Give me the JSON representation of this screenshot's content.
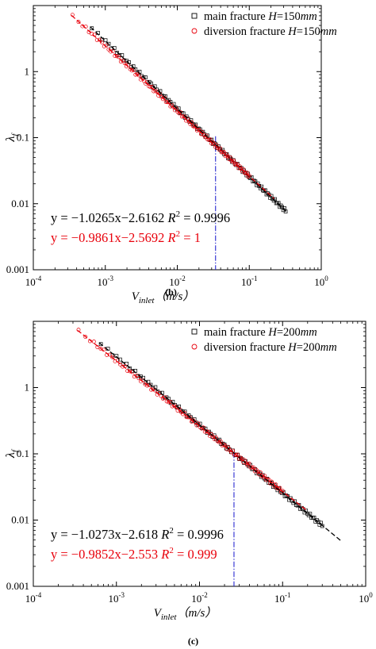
{
  "chart_data": [
    {
      "type": "scatter",
      "panel_label": "(b)",
      "xscale": "log",
      "yscale": "log",
      "xlim": [
        0.0001,
        1
      ],
      "ylim": [
        0.001,
        10
      ],
      "x_ticks": [
        {
          "base": "10",
          "exp": "-4"
        },
        {
          "base": "10",
          "exp": "-3"
        },
        {
          "base": "10",
          "exp": "-2"
        },
        {
          "base": "10",
          "exp": "-1"
        },
        {
          "base": "10",
          "exp": "0"
        }
      ],
      "y_ticks": [
        "0.001",
        "0.01",
        "0.1",
        "1"
      ],
      "xlabel": {
        "main": "V",
        "sub": "inlet",
        "unit": "（m/s）"
      },
      "ylabel": {
        "main": "λ",
        "sub": "f"
      },
      "legend": {
        "placement": "top-right",
        "items": [
          {
            "text": "main fracture ",
            "var": "H",
            "rest": "=150",
            "unit": "mm",
            "marker": "square",
            "color": "#000000"
          },
          {
            "text": "diversion fracture ",
            "var": "H",
            "rest": "=150",
            "unit": "mm",
            "marker": "circle",
            "color": "#e8000b"
          }
        ]
      },
      "annotations": [
        {
          "pre": "y = −1.0265x−2.6162 ",
          "var": "R",
          "sup": "2",
          "post": " = 0.9996",
          "color": "#000000"
        },
        {
          "pre": "y = −0.9861x−2.5692 ",
          "var": "R",
          "sup": "2",
          "post": " = 1",
          "color": "#e8000b"
        }
      ],
      "vline_x": 0.034,
      "series": [
        {
          "name": "main fracture H=150mm",
          "color": "#000000",
          "marker": "square",
          "x_range": [
            0.00065,
            0.32
          ],
          "n": 120,
          "slope": -1.0265,
          "intercept": -2.6162
        },
        {
          "name": "diversion fracture H=150mm",
          "color": "#e8000b",
          "marker": "circle",
          "x_range": [
            0.00035,
            0.1
          ],
          "n": 110,
          "slope": -0.9861,
          "intercept": -2.5692
        }
      ],
      "fit_lines": [
        {
          "color": "#000000",
          "style": "dashed",
          "slope": -1.0265,
          "intercept": -2.6162,
          "x_range": [
            0.00062,
            0.34
          ]
        },
        {
          "color": "#e8000b",
          "style": "dashed",
          "slope": -0.9861,
          "intercept": -2.5692,
          "x_range": [
            0.00034,
            0.22
          ]
        }
      ]
    },
    {
      "type": "scatter",
      "panel_label": "(c)",
      "xscale": "log",
      "yscale": "log",
      "xlim": [
        0.0001,
        1
      ],
      "ylim": [
        0.001,
        10
      ],
      "x_ticks": [
        {
          "base": "10",
          "exp": "-4"
        },
        {
          "base": "10",
          "exp": "-3"
        },
        {
          "base": "10",
          "exp": "-2"
        },
        {
          "base": "10",
          "exp": "-1"
        },
        {
          "base": "10",
          "exp": "0"
        }
      ],
      "y_ticks": [
        "0.001",
        "0.01",
        "0.1",
        "1"
      ],
      "xlabel": {
        "main": "V",
        "sub": "inlet",
        "unit": "（m/s）"
      },
      "ylabel": {
        "main": "λ",
        "sub": "f"
      },
      "legend": {
        "placement": "top-right",
        "items": [
          {
            "text": "main fracture ",
            "var": "H",
            "rest": "=200",
            "unit": "mm",
            "marker": "square",
            "color": "#000000"
          },
          {
            "text": "diversion fracture ",
            "var": "H",
            "rest": "=200",
            "unit": "mm",
            "marker": "circle",
            "color": "#e8000b"
          }
        ]
      },
      "annotations": [
        {
          "pre": "y = −1.0273x−2.618 ",
          "var": "R",
          "sup": "2",
          "post": " = 0.9996",
          "color": "#000000"
        },
        {
          "pre": "y = −0.9852x−2.553 ",
          "var": "R",
          "sup": "2",
          "post": " = 0.999",
          "color": "#e8000b"
        }
      ],
      "vline_x": 0.026,
      "series": [
        {
          "name": "main fracture H=200mm",
          "color": "#000000",
          "marker": "square",
          "x_range": [
            0.00065,
            0.3
          ],
          "n": 120,
          "slope": -1.0273,
          "intercept": -2.618
        },
        {
          "name": "diversion fracture H=200mm",
          "color": "#e8000b",
          "marker": "circle",
          "x_range": [
            0.00035,
            0.1
          ],
          "n": 110,
          "slope": -0.9852,
          "intercept": -2.553
        }
      ],
      "fit_lines": [
        {
          "color": "#000000",
          "style": "dashed",
          "slope": -1.0273,
          "intercept": -2.618,
          "x_range": [
            0.00062,
            0.52
          ]
        },
        {
          "color": "#e8000b",
          "style": "dashed",
          "slope": -0.9852,
          "intercept": -2.553,
          "x_range": [
            0.00034,
            0.2
          ]
        }
      ]
    }
  ],
  "colors": {
    "vline": "#2a2ad0",
    "axis": "#000000"
  }
}
